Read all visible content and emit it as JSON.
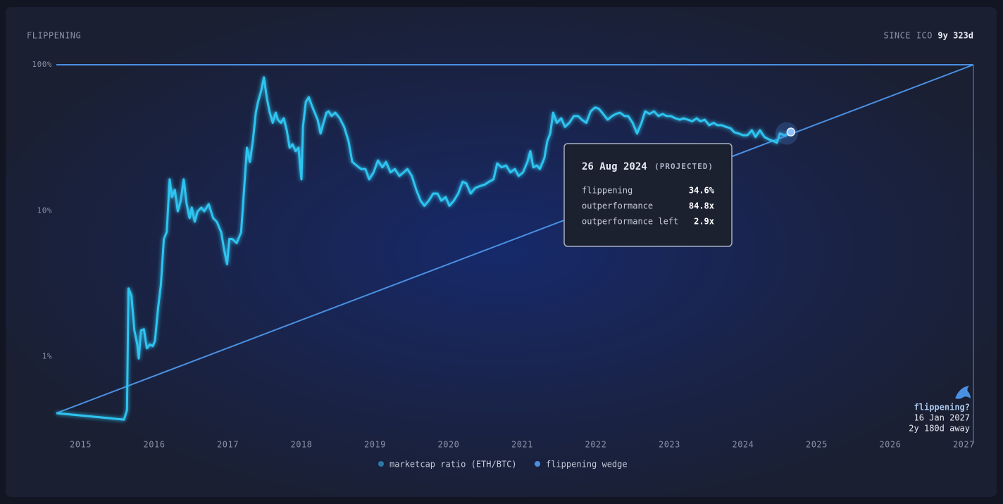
{
  "chart_data": {
    "type": "line",
    "title": "FLIPPENING",
    "since_label": "SINCE ICO",
    "since_value": "9y 323d",
    "log_y": true,
    "xlim": [
      2014.67,
      2027.13
    ],
    "xticks": [
      2015,
      2016,
      2017,
      2018,
      2019,
      2020,
      2021,
      2022,
      2023,
      2024,
      2025,
      2026,
      2027
    ],
    "ylim": [
      0.3,
      100
    ],
    "yticks": [
      {
        "value": 1,
        "label": "1%"
      },
      {
        "value": 10,
        "label": "10%"
      },
      {
        "value": 100,
        "label": "100%"
      }
    ],
    "series": [
      {
        "name": "marketcap ratio (ETH/BTC)",
        "color": "#2ec4f0",
        "legend_color": "#2a78a8",
        "x": [
          2014.67,
          2015.59,
          2015.63,
          2015.65,
          2015.69,
          2015.73,
          2015.77,
          2015.79,
          2015.82,
          2015.86,
          2015.9,
          2015.94,
          2015.98,
          2016.01,
          2016.05,
          2016.09,
          2016.13,
          2016.17,
          2016.21,
          2016.24,
          2016.28,
          2016.32,
          2016.36,
          2016.4,
          2016.44,
          2016.48,
          2016.51,
          2016.55,
          2016.59,
          2016.64,
          2016.68,
          2016.74,
          2016.8,
          2016.85,
          2016.91,
          2016.95,
          2016.99,
          2017.02,
          2017.06,
          2017.12,
          2017.18,
          2017.22,
          2017.26,
          2017.3,
          2017.34,
          2017.38,
          2017.41,
          2017.45,
          2017.49,
          2017.53,
          2017.57,
          2017.61,
          2017.65,
          2017.68,
          2017.72,
          2017.76,
          2017.8,
          2017.84,
          2017.88,
          2017.92,
          2017.96,
          2018.0,
          2018.02,
          2018.06,
          2018.1,
          2018.14,
          2018.18,
          2018.22,
          2018.26,
          2018.3,
          2018.34,
          2018.37,
          2018.41,
          2018.46,
          2018.52,
          2018.58,
          2018.64,
          2018.69,
          2018.75,
          2018.81,
          2018.87,
          2018.92,
          2018.98,
          2019.04,
          2019.1,
          2019.15,
          2019.21,
          2019.27,
          2019.33,
          2019.39,
          2019.44,
          2019.5,
          2019.56,
          2019.62,
          2019.67,
          2019.73,
          2019.79,
          2019.85,
          2019.9,
          2019.96,
          2020.01,
          2020.07,
          2020.13,
          2020.19,
          2020.24,
          2020.3,
          2020.36,
          2020.42,
          2020.49,
          2020.55,
          2020.61,
          2020.66,
          2020.72,
          2020.78,
          2020.84,
          2020.9,
          2020.95,
          2021.01,
          2021.07,
          2021.11,
          2021.15,
          2021.2,
          2021.24,
          2021.3,
          2021.34,
          2021.38,
          2021.42,
          2021.47,
          2021.53,
          2021.58,
          2021.64,
          2021.7,
          2021.76,
          2021.81,
          2021.87,
          2021.93,
          2021.99,
          2022.04,
          2022.1,
          2022.16,
          2022.22,
          2022.27,
          2022.33,
          2022.39,
          2022.44,
          2022.5,
          2022.56,
          2022.62,
          2022.67,
          2022.73,
          2022.79,
          2022.85,
          2022.91,
          2022.96,
          2023.02,
          2023.08,
          2023.14,
          2023.19,
          2023.25,
          2023.31,
          2023.37,
          2023.42,
          2023.48,
          2023.54,
          2023.6,
          2023.65,
          2023.71,
          2023.77,
          2023.83,
          2023.88,
          2023.94,
          2024.0,
          2024.06,
          2024.12,
          2024.17,
          2024.23,
          2024.29,
          2024.35,
          2024.41,
          2024.46,
          2024.5,
          2024.56,
          2024.62
        ],
        "values": [
          0.41,
          0.37,
          0.43,
          2.93,
          2.62,
          1.51,
          1.21,
          0.97,
          1.51,
          1.54,
          1.14,
          1.21,
          1.18,
          1.28,
          2.1,
          3.1,
          6.38,
          7.14,
          16.4,
          12.4,
          13.9,
          9.9,
          11.7,
          16.4,
          11.1,
          8.9,
          10.5,
          8.4,
          9.9,
          10.5,
          9.9,
          11.1,
          8.9,
          8.4,
          7.1,
          5.4,
          4.3,
          6.4,
          6.4,
          6.0,
          7.1,
          13.9,
          27,
          21.6,
          30.1,
          47,
          55.6,
          65.6,
          82,
          59,
          47,
          40,
          47,
          42,
          40,
          43,
          35.6,
          27,
          28.5,
          25.6,
          27,
          16.4,
          37.5,
          55.6,
          60,
          52.6,
          47,
          42,
          33.8,
          40,
          47,
          48,
          44.5,
          47,
          43,
          37.5,
          30,
          21.6,
          20.4,
          19.3,
          19.3,
          16.4,
          18.3,
          22.1,
          19.8,
          21.6,
          18.3,
          19.3,
          17.3,
          18.3,
          19.3,
          17.3,
          13.9,
          11.7,
          10.8,
          11.7,
          13.1,
          13.1,
          11.7,
          12.4,
          10.8,
          11.7,
          13.1,
          15.8,
          15.4,
          13.1,
          14.3,
          14.7,
          15.1,
          15.8,
          16.4,
          21.1,
          19.8,
          20.4,
          18.3,
          19.3,
          17.3,
          18.3,
          21.6,
          25.6,
          19.8,
          20.4,
          19.3,
          22.9,
          30,
          33.8,
          47,
          40,
          43,
          37.5,
          40,
          44.5,
          44.5,
          42,
          40,
          48,
          51,
          50,
          46,
          42,
          44.5,
          46,
          47,
          44.5,
          44.5,
          40,
          33.8,
          40,
          48,
          46,
          48,
          44.5,
          46,
          44.5,
          44.5,
          43,
          42,
          43,
          42,
          41,
          43,
          41,
          42,
          38.5,
          40,
          38.5,
          38.5,
          37.5,
          36.7,
          34.5,
          33.8,
          32.9,
          32.9,
          35.6,
          32,
          35.6,
          32,
          30.8,
          30,
          29.2,
          33.8,
          32.9,
          33.8
        ]
      },
      {
        "name": "flippening wedge",
        "color": "#4a90e2",
        "legend_color": "#4a90e2",
        "x": [
          2014.67,
          2027.13
        ],
        "values": [
          0.41,
          100
        ]
      }
    ],
    "projected": {
      "x": 2024.65,
      "value": 34.6
    },
    "tooltip": {
      "date": "26 Aug 2024",
      "tag": "(PROJECTED)",
      "rows": [
        {
          "label": "flippening",
          "value": "34.6%"
        },
        {
          "label": "outperformance",
          "value": "84.8x"
        },
        {
          "label": "outperformance left",
          "value": "2.9x"
        }
      ]
    },
    "annotation": {
      "title": "flippening?",
      "date": "16 Jan 2027",
      "away": "2y 180d away"
    }
  }
}
